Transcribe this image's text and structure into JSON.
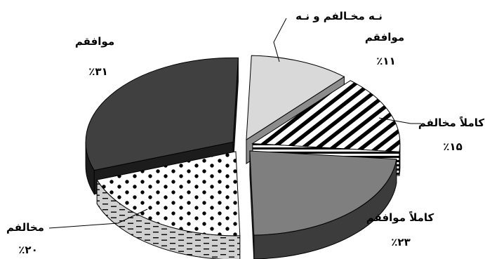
{
  "chart_data": {
    "type": "pie",
    "style": "3d-exploded",
    "title": "",
    "slices": [
      {
        "label": "نـه مخـالفم و نـه موافقم",
        "label_line1": "نـه مخـالفم و نـه",
        "label_line2": "موافقم",
        "value": 11,
        "value_text": "٪۱۱",
        "pattern": "light-gray"
      },
      {
        "label": "کاملاً مخالفم",
        "value": 15,
        "value_text": "٪۱۵",
        "pattern": "diagonal-stripes"
      },
      {
        "label": "کاملاً موافقم",
        "value": 23,
        "value_text": "٪۲۳",
        "pattern": "medium-gray"
      },
      {
        "label": "مخالفم",
        "value": 20,
        "value_text": "٪۲۰",
        "pattern": "dots"
      },
      {
        "label": "موافقم",
        "value": 31,
        "value_text": "٪۳۱",
        "pattern": "dark-gray"
      }
    ],
    "legend": "none"
  }
}
